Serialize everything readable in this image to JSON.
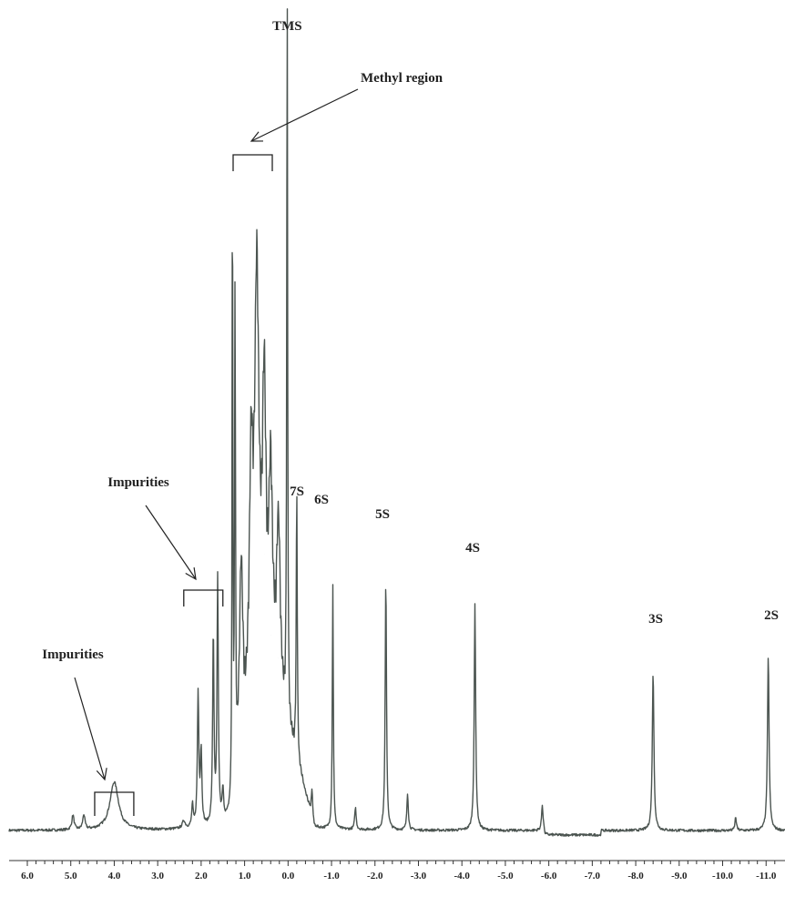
{
  "chart_data": {
    "type": "line",
    "title": "",
    "xlabel": "",
    "ylabel": "",
    "x_reversed": true,
    "xlim": [
      6.0,
      -11.2
    ],
    "ylim": [
      0,
      100
    ],
    "grid": false,
    "ticks": [
      {
        "value": 6.0,
        "label": "6.0"
      },
      {
        "value": 5.0,
        "label": "5.0"
      },
      {
        "value": 4.0,
        "label": "4.0"
      },
      {
        "value": 3.0,
        "label": "3.0"
      },
      {
        "value": 2.0,
        "label": "2.0"
      },
      {
        "value": 1.0,
        "label": "1.0"
      },
      {
        "value": 0.0,
        "label": "0.0"
      },
      {
        "value": -1.0,
        "label": "-1.0"
      },
      {
        "value": -2.0,
        "label": "-2.0"
      },
      {
        "value": -3.0,
        "label": "-3.0"
      },
      {
        "value": -4.0,
        "label": "-4.0"
      },
      {
        "value": -5.0,
        "label": "-5.0"
      },
      {
        "value": -6.0,
        "label": "-6.0"
      },
      {
        "value": -7.0,
        "label": "-7.0"
      },
      {
        "value": -8.0,
        "label": "-8.0"
      },
      {
        "value": -9.0,
        "label": "-9.0"
      },
      {
        "value": -10.0,
        "label": "-10.0"
      },
      {
        "value": -11.0,
        "label": "-11.0"
      }
    ],
    "series": [
      {
        "color": "#4b5450",
        "peaks": [
          {
            "x": 4.95,
            "y": 2,
            "w": 0.03
          },
          {
            "x": 4.7,
            "y": 2,
            "w": 0.03
          },
          {
            "x": 4.0,
            "y": 6.5,
            "w": 0.12
          },
          {
            "x": 2.4,
            "y": 1,
            "w": 0.04
          },
          {
            "x": 2.2,
            "y": 3,
            "w": 0.02
          },
          {
            "x": 2.07,
            "y": 18,
            "w": 0.02
          },
          {
            "x": 2.0,
            "y": 10,
            "w": 0.02
          },
          {
            "x": 1.72,
            "y": 26,
            "w": 0.018
          },
          {
            "x": 1.62,
            "y": 33,
            "w": 0.018
          },
          {
            "x": 1.5,
            "y": 4,
            "w": 0.02
          },
          {
            "x": 1.28,
            "y": 91,
            "w": 0.01
          },
          {
            "x": 1.22,
            "y": 68,
            "w": 0.012
          },
          {
            "x": 1.08,
            "y": 27,
            "w": 0.05
          },
          {
            "x": 0.85,
            "y": 32,
            "w": 0.05
          },
          {
            "x": 0.72,
            "y": 56,
            "w": 0.06
          },
          {
            "x": 0.55,
            "y": 38,
            "w": 0.05
          },
          {
            "x": 0.4,
            "y": 27,
            "w": 0.05
          },
          {
            "x": 0.22,
            "y": 24,
            "w": 0.05
          },
          {
            "x": 0.02,
            "y": 100,
            "w": 0.012
          },
          {
            "x": -0.2,
            "y": 37,
            "w": 0.014
          },
          {
            "x": -0.55,
            "y": 4,
            "w": 0.02
          },
          {
            "x": -1.03,
            "y": 33,
            "w": 0.014
          },
          {
            "x": -1.55,
            "y": 3,
            "w": 0.02
          },
          {
            "x": -2.25,
            "y": 34,
            "w": 0.018
          },
          {
            "x": -2.75,
            "y": 5,
            "w": 0.02
          },
          {
            "x": -4.3,
            "y": 30.5,
            "w": 0.02
          },
          {
            "x": -5.85,
            "y": 3.5,
            "w": 0.02
          },
          {
            "x": -8.4,
            "y": 21.5,
            "w": 0.022
          },
          {
            "x": -10.3,
            "y": 1.8,
            "w": 0.02
          },
          {
            "x": -11.05,
            "y": 23.5,
            "w": 0.022
          }
        ]
      }
    ],
    "annotations": [
      {
        "text": "TMS",
        "x": 0.02
      },
      {
        "text": "Methyl region"
      },
      {
        "text": "Impurities",
        "region": [
          2.4,
          1.5
        ]
      },
      {
        "text": "Impurities",
        "region": [
          4.45,
          3.55
        ]
      },
      {
        "text": "7S",
        "x": -0.2
      },
      {
        "text": "6S",
        "x": -1.03
      },
      {
        "text": "5S",
        "x": -2.25
      },
      {
        "text": "4S",
        "x": -4.3
      },
      {
        "text": "3S",
        "x": -8.4
      },
      {
        "text": "2S",
        "x": -11.05
      }
    ]
  }
}
